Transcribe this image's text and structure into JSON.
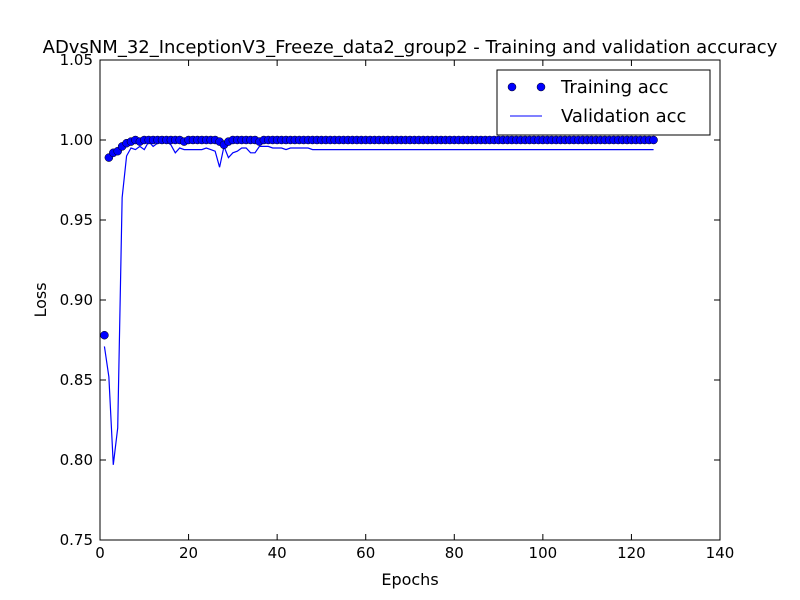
{
  "chart_data": {
    "type": "line",
    "title": "ADvsNM_32_InceptionV3_Freeze_data2_group2 - Training and validation accuracy",
    "xlabel": "Epochs",
    "ylabel": "Loss",
    "xlim": [
      0,
      140
    ],
    "ylim": [
      0.75,
      1.05
    ],
    "xticks": [
      0,
      20,
      40,
      60,
      80,
      100,
      120,
      140
    ],
    "yticks": [
      0.75,
      0.8,
      0.85,
      0.9,
      0.95,
      1.0,
      1.05
    ],
    "xtick_labels": [
      "0",
      "20",
      "40",
      "60",
      "80",
      "100",
      "120",
      "140"
    ],
    "ytick_labels": [
      "0.75",
      "0.80",
      "0.85",
      "0.90",
      "0.95",
      "1.00",
      "1.05"
    ],
    "grid": false,
    "legend_position": "top-right",
    "series": [
      {
        "name": "Training acc",
        "style": "markers",
        "color": "#0000ff",
        "x": [
          1,
          2,
          3,
          4,
          5,
          6,
          7,
          8,
          9,
          10,
          11,
          12,
          13,
          14,
          15,
          16,
          17,
          18,
          19,
          20,
          21,
          22,
          23,
          24,
          25,
          26,
          27,
          28,
          29,
          30,
          31,
          32,
          33,
          34,
          35,
          36,
          37,
          38,
          39,
          40,
          41,
          42,
          43,
          44,
          45,
          46,
          47,
          48,
          49,
          50,
          51,
          52,
          53,
          54,
          55,
          56,
          57,
          58,
          59,
          60,
          61,
          62,
          63,
          64,
          65,
          66,
          67,
          68,
          69,
          70,
          71,
          72,
          73,
          74,
          75,
          76,
          77,
          78,
          79,
          80,
          81,
          82,
          83,
          84,
          85,
          86,
          87,
          88,
          89,
          90,
          91,
          92,
          93,
          94,
          95,
          96,
          97,
          98,
          99,
          100,
          101,
          102,
          103,
          104,
          105,
          106,
          107,
          108,
          109,
          110,
          111,
          112,
          113,
          114,
          115,
          116,
          117,
          118,
          119,
          120,
          121,
          122,
          123,
          124,
          125
        ],
        "values": [
          0.878,
          0.989,
          0.992,
          0.993,
          0.996,
          0.998,
          0.999,
          1.0,
          0.999,
          1.0,
          1.0,
          1.0,
          1.0,
          1.0,
          1.0,
          1.0,
          1.0,
          1.0,
          0.999,
          1.0,
          1.0,
          1.0,
          1.0,
          1.0,
          1.0,
          1.0,
          0.999,
          0.997,
          0.999,
          1.0,
          1.0,
          1.0,
          1.0,
          1.0,
          1.0,
          0.999,
          1.0,
          1.0,
          1.0,
          1.0,
          1.0,
          1.0,
          1.0,
          1.0,
          1.0,
          1.0,
          1.0,
          1.0,
          1.0,
          1.0,
          1.0,
          1.0,
          1.0,
          1.0,
          1.0,
          1.0,
          1.0,
          1.0,
          1.0,
          1.0,
          1.0,
          1.0,
          1.0,
          1.0,
          1.0,
          1.0,
          1.0,
          1.0,
          1.0,
          1.0,
          1.0,
          1.0,
          1.0,
          1.0,
          1.0,
          1.0,
          1.0,
          1.0,
          1.0,
          1.0,
          1.0,
          1.0,
          1.0,
          1.0,
          1.0,
          1.0,
          1.0,
          1.0,
          1.0,
          1.0,
          1.0,
          1.0,
          1.0,
          1.0,
          1.0,
          1.0,
          1.0,
          1.0,
          1.0,
          1.0,
          1.0,
          1.0,
          1.0,
          1.0,
          1.0,
          1.0,
          1.0,
          1.0,
          1.0,
          1.0,
          1.0,
          1.0,
          1.0,
          1.0,
          1.0,
          1.0,
          1.0,
          1.0,
          1.0,
          1.0,
          1.0,
          1.0,
          1.0,
          1.0,
          1.0
        ]
      },
      {
        "name": "Validation acc",
        "style": "line",
        "color": "#0000ff",
        "x": [
          1,
          2,
          3,
          4,
          5,
          6,
          7,
          8,
          9,
          10,
          11,
          12,
          13,
          14,
          15,
          16,
          17,
          18,
          19,
          20,
          21,
          22,
          23,
          24,
          25,
          26,
          27,
          28,
          29,
          30,
          31,
          32,
          33,
          34,
          35,
          36,
          37,
          38,
          39,
          40,
          41,
          42,
          43,
          44,
          45,
          46,
          47,
          48,
          49,
          50,
          51,
          52,
          53,
          54,
          55,
          56,
          57,
          58,
          59,
          60,
          61,
          62,
          63,
          64,
          65,
          66,
          67,
          68,
          69,
          70,
          71,
          72,
          73,
          74,
          75,
          76,
          77,
          78,
          79,
          80,
          81,
          82,
          83,
          84,
          85,
          86,
          87,
          88,
          89,
          90,
          91,
          92,
          93,
          94,
          95,
          96,
          97,
          98,
          99,
          100,
          101,
          102,
          103,
          104,
          105,
          106,
          107,
          108,
          109,
          110,
          111,
          112,
          113,
          114,
          115,
          116,
          117,
          118,
          119,
          120,
          121,
          122,
          123,
          124,
          125
        ],
        "values": [
          0.871,
          0.852,
          0.797,
          0.82,
          0.964,
          0.99,
          0.995,
          0.994,
          0.996,
          0.994,
          0.999,
          0.996,
          0.998,
          0.999,
          0.999,
          0.997,
          0.992,
          0.995,
          0.994,
          0.994,
          0.994,
          0.994,
          0.994,
          0.995,
          0.994,
          0.993,
          0.983,
          0.996,
          0.989,
          0.992,
          0.993,
          0.995,
          0.995,
          0.992,
          0.992,
          0.996,
          0.996,
          0.996,
          0.995,
          0.995,
          0.995,
          0.994,
          0.995,
          0.995,
          0.995,
          0.995,
          0.995,
          0.994,
          0.994,
          0.994,
          0.994,
          0.994,
          0.994,
          0.994,
          0.994,
          0.994,
          0.994,
          0.994,
          0.994,
          0.994,
          0.994,
          0.994,
          0.994,
          0.994,
          0.994,
          0.994,
          0.994,
          0.994,
          0.994,
          0.994,
          0.994,
          0.994,
          0.994,
          0.994,
          0.994,
          0.994,
          0.994,
          0.994,
          0.994,
          0.994,
          0.994,
          0.994,
          0.994,
          0.994,
          0.994,
          0.994,
          0.994,
          0.994,
          0.994,
          0.994,
          0.994,
          0.994,
          0.994,
          0.994,
          0.994,
          0.994,
          0.994,
          0.994,
          0.994,
          0.994,
          0.994,
          0.994,
          0.994,
          0.994,
          0.994,
          0.994,
          0.994,
          0.994,
          0.994,
          0.994,
          0.994,
          0.994,
          0.994,
          0.994,
          0.994,
          0.994,
          0.994,
          0.994,
          0.994,
          0.994,
          0.994,
          0.994,
          0.994,
          0.994,
          0.994
        ]
      }
    ]
  }
}
